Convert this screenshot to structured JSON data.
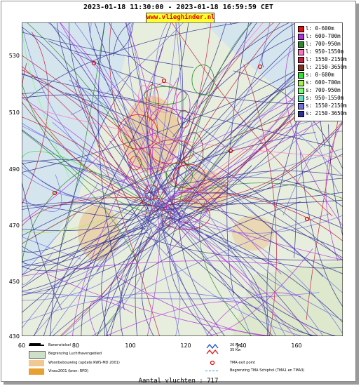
{
  "header": {
    "title": "2023-01-18 11:30:00 - 2023-01-18 16:59:59 CET",
    "site": "www.vlieghinder.nl"
  },
  "axes": {
    "y_ticks": [
      "530",
      "510",
      "490",
      "470",
      "450",
      "430"
    ],
    "x_ticks": [
      "60",
      "80",
      "100",
      "120",
      "140",
      "160"
    ]
  },
  "legend": {
    "items": [
      {
        "label": "l: 0-600m",
        "color": "#e01010"
      },
      {
        "label": "l: 600-700m",
        "color": "#b030e0"
      },
      {
        "label": "l: 700-950m",
        "color": "#2a8a2a"
      },
      {
        "label": "l: 950-1550m",
        "color": "#ff70c0"
      },
      {
        "label": "l: 1550-2150m",
        "color": "#c02040"
      },
      {
        "label": "l: 2150-3650m",
        "color": "#803020"
      },
      {
        "label": "s: 0-600m",
        "color": "#30e030"
      },
      {
        "label": "s: 600-700m",
        "color": "#a0f050"
      },
      {
        "label": "s: 700-950m",
        "color": "#70ff70"
      },
      {
        "label": "s: 950-1550m",
        "color": "#60e0c0"
      },
      {
        "label": "s: 1550-2150m",
        "color": "#7070e0"
      },
      {
        "label": "s: 2150-3650m",
        "color": "#303090"
      }
    ]
  },
  "bottom_legend": {
    "runways": "Banenstelsel",
    "airport_boundary": "Begrenzing Luchthavengebied",
    "housing": "Woonbebouwing (update RWS-MD 2001)",
    "vinex": "Vinex2001 (bron: RPD)",
    "wind_20": "20 Kw",
    "wind_35": "35 Kw",
    "tma_exit": "TMA exit point",
    "tma_boundary": "Begrenzing TMA Schiphol  (TMA1 en TMA3)"
  },
  "footer": {
    "count": "Aantal vluchten : 717"
  },
  "map_colors": {
    "land": "#dfe8d4",
    "water": "#cfe1ee",
    "urban": "#e8c08a"
  }
}
